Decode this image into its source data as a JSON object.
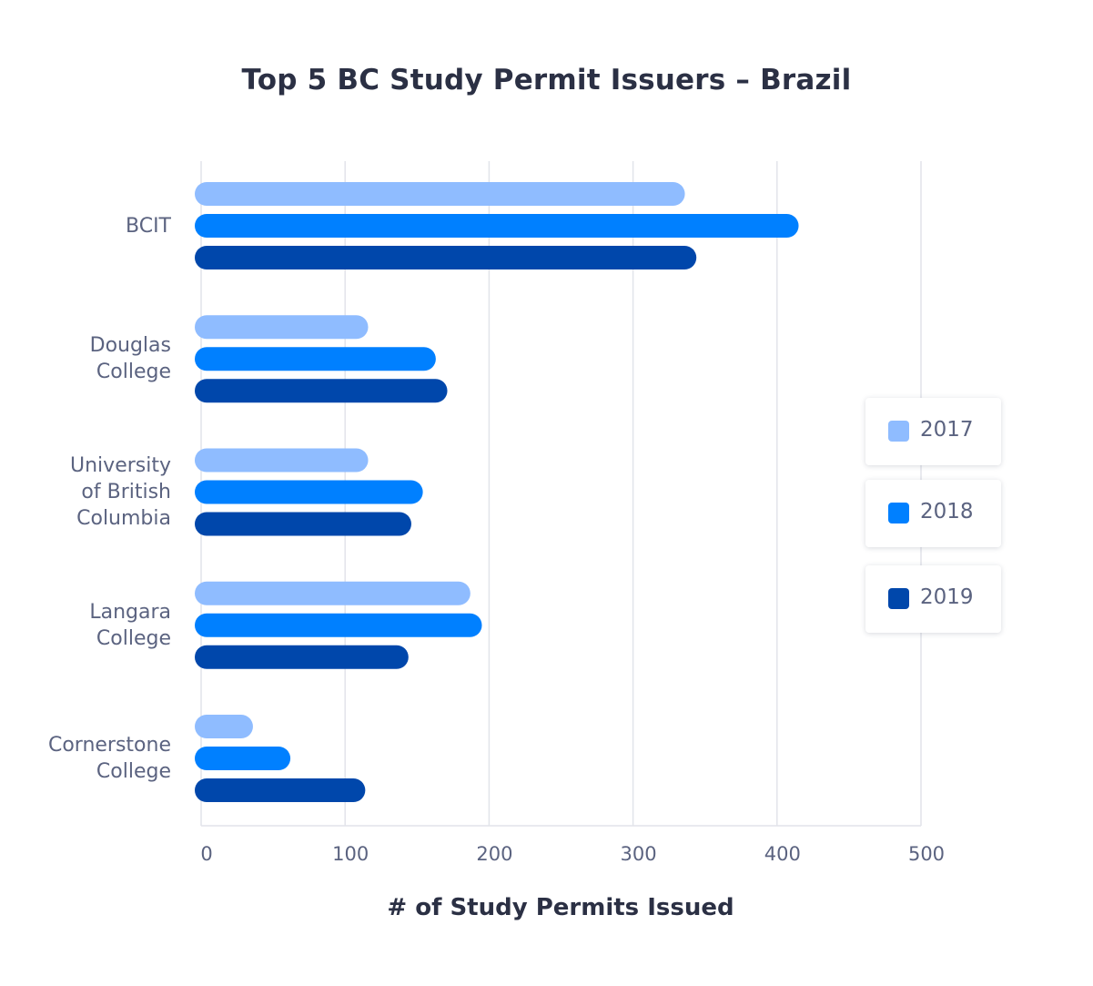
{
  "chart_data": {
    "type": "bar",
    "orientation": "horizontal",
    "title": "Top 5 BC Study Permit Issuers – Brazil",
    "xlabel": "# of Study Permits Issued",
    "ylabel": "",
    "xlim": [
      0,
      500
    ],
    "x_ticks": [
      "0",
      "100",
      "200",
      "300",
      "400",
      "500"
    ],
    "grid": true,
    "legend_position": "right",
    "categories": [
      "BCIT",
      "Douglas\nCollege",
      "University\nof British\nColumbia",
      "Langara\nCollege",
      "Cornerstone\nCollege"
    ],
    "series": [
      {
        "name": "2017",
        "color": "#8fbcff",
        "values": [
          336,
          116,
          116,
          187,
          36
        ]
      },
      {
        "name": "2018",
        "color": "#0080ff",
        "values": [
          415,
          163,
          154,
          195,
          62
        ]
      },
      {
        "name": "2019",
        "color": "#0047ab",
        "values": [
          344,
          171,
          146,
          144,
          114
        ]
      }
    ]
  }
}
